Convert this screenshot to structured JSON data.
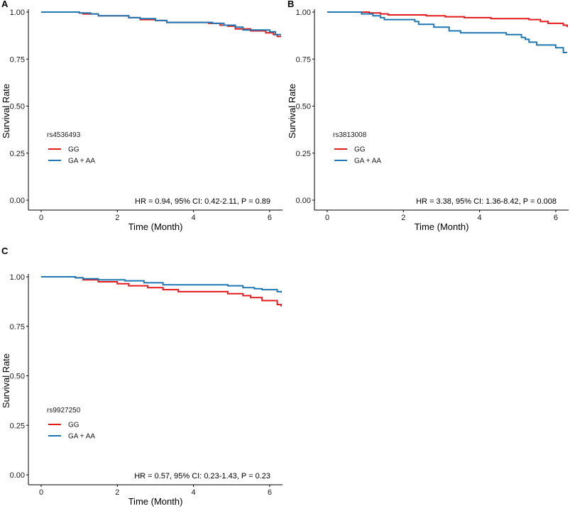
{
  "colors": {
    "GG": "#e41a1c",
    "GA_AA": "#1f78b4"
  },
  "chart_data": [
    {
      "panel": "A",
      "type": "line",
      "step": true,
      "xlabel": "Time (Month)",
      "ylabel": "Survival Rate",
      "xlim": [
        0,
        6.3
      ],
      "ylim": [
        0,
        1
      ],
      "xticks": [
        "0",
        "2",
        "4",
        "6"
      ],
      "yticks": [
        "0.00",
        "0.25",
        "0.50",
        "0.75",
        "1.00"
      ],
      "legend_title": "rs4536493",
      "annotation": "HR = 0.94, 95% CI: 0.42-2.11, P =  0.89",
      "series": [
        {
          "name": "GG",
          "color_key": "GG",
          "x": [
            0,
            1.0,
            1.1,
            1.5,
            2.3,
            2.6,
            3.0,
            3.3,
            4.1,
            4.4,
            4.7,
            4.9,
            5.1,
            5.5,
            5.9,
            6.1,
            6.2,
            6.3
          ],
          "y": [
            1.0,
            0.995,
            0.99,
            0.98,
            0.97,
            0.96,
            0.955,
            0.945,
            0.945,
            0.94,
            0.93,
            0.925,
            0.91,
            0.9,
            0.89,
            0.88,
            0.87,
            0.87
          ]
        },
        {
          "name": "GA + AA",
          "color_key": "GA_AA",
          "x": [
            0,
            1.0,
            1.3,
            1.5,
            2.3,
            2.6,
            3.0,
            3.3,
            4.5,
            4.8,
            5.1,
            5.3,
            6.0,
            6.15,
            6.3
          ],
          "y": [
            1.0,
            0.995,
            0.99,
            0.98,
            0.97,
            0.965,
            0.955,
            0.945,
            0.94,
            0.93,
            0.92,
            0.905,
            0.895,
            0.88,
            0.88
          ]
        }
      ]
    },
    {
      "panel": "B",
      "type": "line",
      "step": true,
      "xlabel": "Time (Month)",
      "ylabel": "Survival Rate",
      "xlim": [
        0,
        6.3
      ],
      "ylim": [
        0,
        1
      ],
      "xticks": [
        "0",
        "2",
        "4",
        "6"
      ],
      "yticks": [
        "0.00",
        "0.25",
        "0.50",
        "0.75",
        "1.00"
      ],
      "legend_title": "rs3813008",
      "annotation": "HR = 3.38, 95% CI: 1.36-8.42, P = 0.008",
      "series": [
        {
          "name": "GG",
          "color_key": "GG",
          "x": [
            0,
            1.1,
            1.4,
            1.6,
            2.6,
            3.1,
            3.6,
            4.3,
            5.3,
            5.6,
            5.8,
            6.2,
            6.3
          ],
          "y": [
            1.0,
            0.995,
            0.99,
            0.985,
            0.98,
            0.975,
            0.97,
            0.965,
            0.96,
            0.95,
            0.94,
            0.93,
            0.92
          ]
        },
        {
          "name": "GA + AA",
          "color_key": "GA_AA",
          "x": [
            0,
            0.9,
            1.2,
            1.4,
            1.5,
            2.3,
            2.4,
            2.8,
            3.2,
            3.5,
            4.7,
            5.1,
            5.2,
            5.3,
            5.5,
            6.0,
            6.2,
            6.3
          ],
          "y": [
            1.0,
            0.99,
            0.98,
            0.97,
            0.96,
            0.95,
            0.935,
            0.92,
            0.9,
            0.89,
            0.88,
            0.865,
            0.855,
            0.84,
            0.825,
            0.81,
            0.785,
            0.785
          ]
        }
      ]
    },
    {
      "panel": "C",
      "type": "line",
      "step": true,
      "xlabel": "Time (Month)",
      "ylabel": "Survival Rate",
      "xlim": [
        0,
        6.3
      ],
      "ylim": [
        0,
        1
      ],
      "xticks": [
        "0",
        "2",
        "4",
        "6"
      ],
      "yticks": [
        "0.00",
        "0.25",
        "0.50",
        "0.75",
        "1.00"
      ],
      "legend_title": "rs9927250",
      "annotation": "HR = 0.57, 95% CI: 0.23-1.43, P = 0.23",
      "series": [
        {
          "name": "GG",
          "color_key": "GG",
          "x": [
            0,
            0.9,
            1.1,
            1.5,
            2.0,
            2.3,
            2.8,
            3.2,
            3.6,
            4.9,
            5.3,
            5.5,
            5.8,
            6.2,
            6.3
          ],
          "y": [
            1.0,
            0.995,
            0.985,
            0.975,
            0.965,
            0.955,
            0.945,
            0.935,
            0.925,
            0.915,
            0.905,
            0.895,
            0.88,
            0.86,
            0.85
          ]
        },
        {
          "name": "GA + AA",
          "color_key": "GA_AA",
          "x": [
            0,
            0.9,
            1.1,
            1.5,
            2.2,
            2.7,
            3.2,
            4.9,
            5.3,
            5.6,
            5.8,
            6.2,
            6.3
          ],
          "y": [
            1.0,
            0.995,
            0.99,
            0.985,
            0.98,
            0.97,
            0.96,
            0.955,
            0.945,
            0.94,
            0.935,
            0.925,
            0.92
          ]
        }
      ]
    }
  ]
}
